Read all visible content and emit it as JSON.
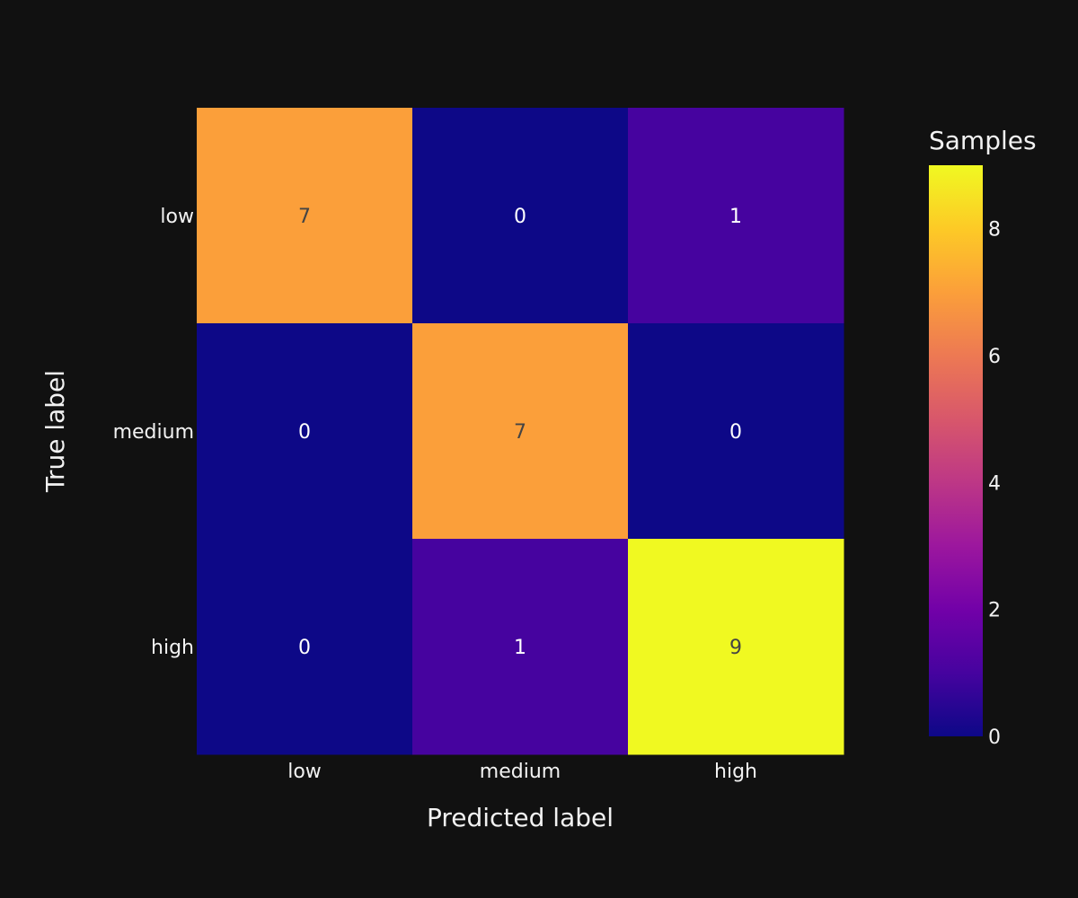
{
  "chart_data": {
    "type": "heatmap",
    "title": "",
    "xlabel": "Predicted label",
    "ylabel": "True label",
    "x_categories": [
      "low",
      "medium",
      "high"
    ],
    "y_categories": [
      "low",
      "medium",
      "high"
    ],
    "z": [
      [
        7,
        0,
        1
      ],
      [
        0,
        7,
        0
      ],
      [
        0,
        1,
        9
      ]
    ],
    "zrange": [
      0,
      9
    ],
    "colorscale": "plasma",
    "colorbar": {
      "title": "Samples",
      "ticks": [
        0,
        2,
        4,
        6,
        8
      ]
    },
    "background_color": "#111111"
  }
}
